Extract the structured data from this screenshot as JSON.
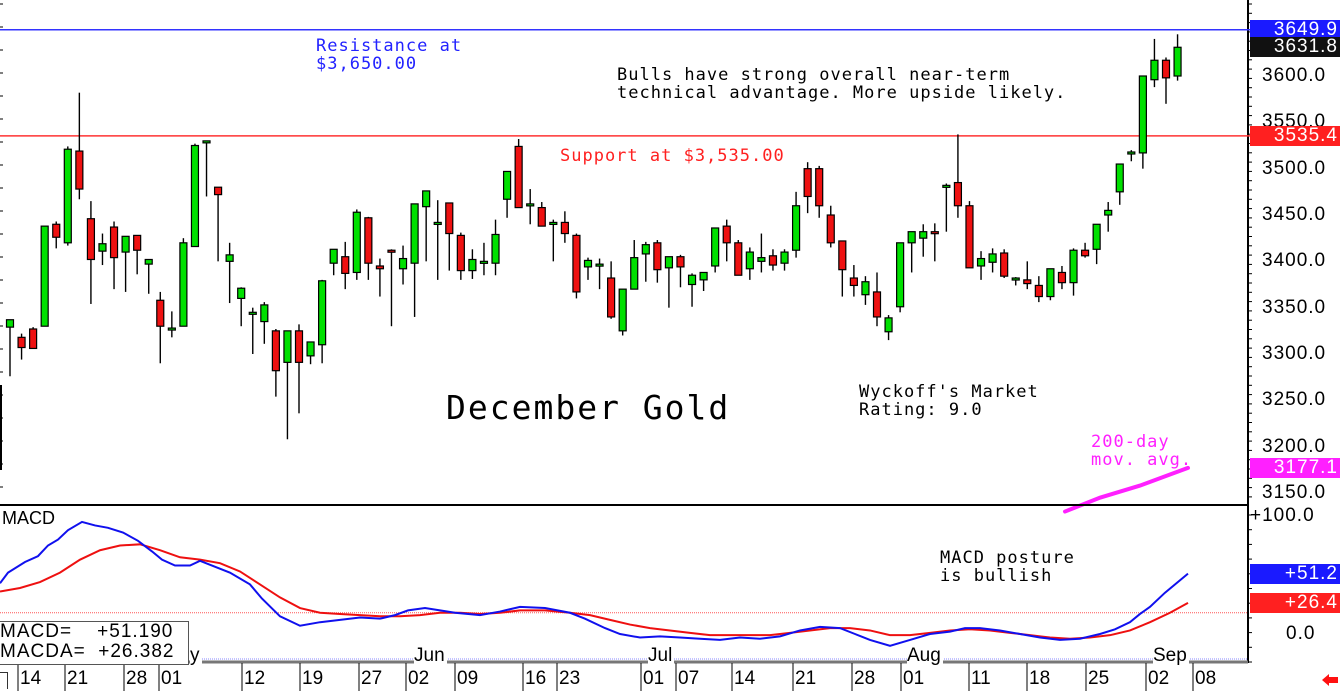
{
  "chart_data": {
    "type": "candlestick",
    "title": "December Gold",
    "price_axis": {
      "ticks": [
        3600.0,
        3550.0,
        3500.0,
        3450.0,
        3400.0,
        3350.0,
        3300.0,
        3250.0,
        3200.0,
        3150.0
      ],
      "tick_labels": [
        "3600.0",
        "3550.0",
        "3500.0",
        "3450.0",
        "3400.0",
        "3350.0",
        "3300.0",
        "3250.0",
        "3200.0",
        "3150.0"
      ],
      "ylim": [
        3130,
        3680
      ]
    },
    "axis_tags": [
      {
        "label": "3649.9",
        "value": 3649.9,
        "bg": "#1a1aff",
        "fg": "#ffffff"
      },
      {
        "label": "3631.8",
        "value": 3631.8,
        "bg": "#111111",
        "fg": "#ffffff"
      },
      {
        "label": "3535.4",
        "value": 3535.4,
        "bg": "#ff2020",
        "fg": "#ffffff"
      },
      {
        "label": "3177.1",
        "value": 3177.1,
        "bg": "#ff20ff",
        "fg": "#ffffff"
      }
    ],
    "horizontal_lines": [
      {
        "name": "resistance",
        "value": 3649.9,
        "color": "#3333ff"
      },
      {
        "name": "support",
        "value": 3535.4,
        "color": "#ff3333"
      }
    ],
    "annotations": {
      "resistance": "Resistance at\n$3,650.00",
      "support": "Support at $3,535.00",
      "outlook": "Bulls have strong overall near-term\ntechnical advantage. More upside likely.",
      "rating": "Wyckoff's Market\nRating: 9.0",
      "ma_label": "200-day\nmov. avg.",
      "macd_note": "MACD posture\nis bullish"
    },
    "candles_x_start": 10,
    "candles_x_step": 11.56,
    "candles": [
      [
        3329,
        3337,
        3276,
        3337
      ],
      [
        3318,
        3322,
        3294,
        3307
      ],
      [
        3327,
        3329,
        3307,
        3306
      ],
      [
        3330,
        3438,
        3330,
        3438
      ],
      [
        3440,
        3443,
        3414,
        3426
      ],
      [
        3420,
        3524,
        3417,
        3521
      ],
      [
        3519,
        3582,
        3467,
        3478
      ],
      [
        3446,
        3465,
        3354,
        3402
      ],
      [
        3411,
        3430,
        3396,
        3419
      ],
      [
        3437,
        3443,
        3370,
        3404
      ],
      [
        3410,
        3420,
        3367,
        3427
      ],
      [
        3428,
        3428,
        3386,
        3412
      ],
      [
        3397,
        3397,
        3365,
        3402
      ],
      [
        3358,
        3367,
        3290,
        3330
      ],
      [
        3328,
        3346,
        3318,
        3328
      ],
      [
        3330,
        3425,
        3330,
        3420
      ],
      [
        3416,
        3527,
        3416,
        3525
      ],
      [
        3528,
        3528,
        3470,
        3530
      ],
      [
        3480,
        3480,
        3400,
        3472
      ],
      [
        3400,
        3420,
        3355,
        3407
      ],
      [
        3360,
        3372,
        3330,
        3371
      ],
      [
        3345,
        3350,
        3300,
        3345
      ],
      [
        3335,
        3356,
        3311,
        3353
      ],
      [
        3325,
        3327,
        3254,
        3282
      ],
      [
        3291,
        3325,
        3208,
        3325
      ],
      [
        3325,
        3332,
        3236,
        3291
      ],
      [
        3298,
        3311,
        3289,
        3313
      ],
      [
        3310,
        3380,
        3290,
        3379
      ],
      [
        3398,
        3408,
        3385,
        3413
      ],
      [
        3405,
        3421,
        3370,
        3387
      ],
      [
        3388,
        3456,
        3380,
        3453
      ],
      [
        3447,
        3448,
        3380,
        3398
      ],
      [
        3395,
        3403,
        3362,
        3392
      ],
      [
        3412,
        3413,
        3330,
        3411
      ],
      [
        3392,
        3417,
        3375,
        3403
      ],
      [
        3398,
        3440,
        3340,
        3462
      ],
      [
        3459,
        3474,
        3400,
        3476
      ],
      [
        3440,
        3466,
        3380,
        3442
      ],
      [
        3463,
        3463,
        3390,
        3430
      ],
      [
        3428,
        3431,
        3380,
        3390
      ],
      [
        3390,
        3413,
        3381,
        3402
      ],
      [
        3400,
        3420,
        3385,
        3400
      ],
      [
        3398,
        3445,
        3385,
        3429
      ],
      [
        3467,
        3476,
        3447,
        3497
      ],
      [
        3524,
        3532,
        3460,
        3458
      ],
      [
        3462,
        3478,
        3440,
        3462
      ],
      [
        3458,
        3464,
        3440,
        3438
      ],
      [
        3440,
        3445,
        3400,
        3442
      ],
      [
        3442,
        3454,
        3420,
        3430
      ],
      [
        3428,
        3430,
        3360,
        3367
      ],
      [
        3394,
        3404,
        3380,
        3401
      ],
      [
        3397,
        3403,
        3370,
        3397
      ],
      [
        3382,
        3400,
        3338,
        3340
      ],
      [
        3325,
        3330,
        3320,
        3370
      ],
      [
        3370,
        3423,
        3370,
        3404
      ],
      [
        3408,
        3421,
        3378,
        3418
      ],
      [
        3420,
        3423,
        3377,
        3391
      ],
      [
        3393,
        3397,
        3350,
        3405
      ],
      [
        3405,
        3407,
        3372,
        3394
      ],
      [
        3375,
        3387,
        3351,
        3385
      ],
      [
        3380,
        3388,
        3368,
        3388
      ],
      [
        3395,
        3415,
        3388,
        3436
      ],
      [
        3438,
        3445,
        3400,
        3420
      ],
      [
        3420,
        3423,
        3390,
        3385
      ],
      [
        3392,
        3415,
        3380,
        3410
      ],
      [
        3400,
        3430,
        3388,
        3404
      ],
      [
        3406,
        3413,
        3390,
        3396
      ],
      [
        3398,
        3413,
        3390,
        3410
      ],
      [
        3412,
        3475,
        3404,
        3460
      ],
      [
        3500,
        3507,
        3452,
        3470
      ],
      [
        3500,
        3503,
        3447,
        3460
      ],
      [
        3450,
        3460,
        3415,
        3420
      ],
      [
        3422,
        3420,
        3362,
        3391
      ],
      [
        3382,
        3396,
        3362,
        3374
      ],
      [
        3364,
        3384,
        3353,
        3378
      ],
      [
        3367,
        3388,
        3330,
        3340
      ],
      [
        3324,
        3342,
        3315,
        3339
      ],
      [
        3351,
        3392,
        3345,
        3420
      ],
      [
        3420,
        3427,
        3388,
        3432
      ],
      [
        3425,
        3440,
        3405,
        3432
      ],
      [
        3432,
        3441,
        3400,
        3430
      ],
      [
        3480,
        3484,
        3432,
        3482
      ],
      [
        3485,
        3537,
        3447,
        3460
      ],
      [
        3460,
        3465,
        3397,
        3393
      ],
      [
        3395,
        3411,
        3380,
        3403
      ],
      [
        3399,
        3414,
        3388,
        3408
      ],
      [
        3409,
        3413,
        3382,
        3384
      ],
      [
        3382,
        3383,
        3374,
        3382
      ],
      [
        3380,
        3400,
        3370,
        3376
      ],
      [
        3374,
        3384,
        3356,
        3362
      ],
      [
        3362,
        3391,
        3358,
        3392
      ],
      [
        3388,
        3395,
        3370,
        3377
      ],
      [
        3377,
        3414,
        3363,
        3412
      ],
      [
        3412,
        3420,
        3404,
        3406
      ],
      [
        3413,
        3440,
        3397,
        3440
      ],
      [
        3450,
        3464,
        3432,
        3455
      ],
      [
        3475,
        3496,
        3461,
        3505
      ],
      [
        3516,
        3520,
        3508,
        3518
      ],
      [
        3517,
        3600,
        3500,
        3600
      ],
      [
        3596,
        3640,
        3588,
        3617
      ],
      [
        3617,
        3620,
        3570,
        3598
      ],
      [
        3600,
        3645,
        3595,
        3631
      ]
    ],
    "candle_format": "[open, high, low, close] approx, read from pixels",
    "moving_average_200": {
      "color": "#ff20ff",
      "points_xy_price": [
        [
          1065,
          3130
        ],
        [
          1100,
          3145
        ],
        [
          1140,
          3158
        ],
        [
          1170,
          3170
        ],
        [
          1188,
          3177.1
        ]
      ]
    },
    "macd": {
      "label": "MACD",
      "ylim": [
        -20,
        110
      ],
      "ticks": [
        "+100.0",
        "0.0"
      ],
      "tick_values": [
        100,
        0
      ],
      "tags": [
        {
          "label": "+51.2",
          "value": 51.2,
          "bg": "#1a1aff",
          "fg": "#ffffff"
        },
        {
          "label": "+26.4",
          "value": 26.4,
          "bg": "#ff2020",
          "fg": "#ffffff"
        }
      ],
      "reference_line": 18,
      "macd_line_color": "#1010ee",
      "signal_line_color": "#ee1010",
      "macd_line": [
        [
          0,
          43
        ],
        [
          8,
          52
        ],
        [
          25,
          61
        ],
        [
          38,
          66
        ],
        [
          48,
          75
        ],
        [
          58,
          80
        ],
        [
          68,
          88
        ],
        [
          82,
          95
        ],
        [
          95,
          92
        ],
        [
          108,
          90
        ],
        [
          123,
          86
        ],
        [
          138,
          79
        ],
        [
          152,
          70
        ],
        [
          162,
          63
        ],
        [
          175,
          58
        ],
        [
          190,
          58
        ],
        [
          200,
          62
        ],
        [
          212,
          58
        ],
        [
          230,
          52
        ],
        [
          250,
          42
        ],
        [
          262,
          30
        ],
        [
          280,
          15
        ],
        [
          300,
          7
        ],
        [
          320,
          10
        ],
        [
          340,
          12
        ],
        [
          360,
          14
        ],
        [
          380,
          13
        ],
        [
          395,
          16
        ],
        [
          408,
          20
        ],
        [
          425,
          22
        ],
        [
          440,
          20
        ],
        [
          455,
          18
        ],
        [
          480,
          16
        ],
        [
          500,
          19
        ],
        [
          520,
          23
        ],
        [
          545,
          22
        ],
        [
          570,
          18
        ],
        [
          585,
          13
        ],
        [
          605,
          5
        ],
        [
          620,
          0
        ],
        [
          640,
          -3
        ],
        [
          660,
          -2
        ],
        [
          680,
          -3
        ],
        [
          700,
          -4
        ],
        [
          720,
          -5
        ],
        [
          740,
          -3
        ],
        [
          760,
          -4
        ],
        [
          780,
          -2
        ],
        [
          800,
          3
        ],
        [
          820,
          6
        ],
        [
          840,
          5
        ],
        [
          855,
          0
        ],
        [
          870,
          -5
        ],
        [
          890,
          -10
        ],
        [
          910,
          -5
        ],
        [
          930,
          0
        ],
        [
          950,
          2
        ],
        [
          965,
          5
        ],
        [
          980,
          5
        ],
        [
          1000,
          3
        ],
        [
          1020,
          0
        ],
        [
          1040,
          -3
        ],
        [
          1060,
          -5
        ],
        [
          1080,
          -4
        ],
        [
          1100,
          0
        ],
        [
          1115,
          4
        ],
        [
          1130,
          10
        ],
        [
          1140,
          17
        ],
        [
          1150,
          23
        ],
        [
          1165,
          35
        ],
        [
          1188,
          51.2
        ]
      ],
      "signal_line": [
        [
          0,
          36
        ],
        [
          20,
          39
        ],
        [
          40,
          44
        ],
        [
          60,
          52
        ],
        [
          80,
          63
        ],
        [
          100,
          71
        ],
        [
          120,
          75
        ],
        [
          140,
          76
        ],
        [
          160,
          71
        ],
        [
          180,
          65
        ],
        [
          200,
          63
        ],
        [
          220,
          60
        ],
        [
          240,
          53
        ],
        [
          260,
          42
        ],
        [
          280,
          31
        ],
        [
          300,
          22
        ],
        [
          320,
          18
        ],
        [
          340,
          17
        ],
        [
          360,
          16
        ],
        [
          380,
          15
        ],
        [
          400,
          15
        ],
        [
          420,
          16
        ],
        [
          440,
          18
        ],
        [
          460,
          18
        ],
        [
          480,
          17
        ],
        [
          500,
          18
        ],
        [
          520,
          20
        ],
        [
          545,
          20
        ],
        [
          570,
          18
        ],
        [
          590,
          16
        ],
        [
          610,
          12
        ],
        [
          630,
          8
        ],
        [
          650,
          5
        ],
        [
          670,
          3
        ],
        [
          690,
          1
        ],
        [
          710,
          -1
        ],
        [
          730,
          -1
        ],
        [
          750,
          -1
        ],
        [
          770,
          -1
        ],
        [
          790,
          1
        ],
        [
          810,
          3
        ],
        [
          830,
          5
        ],
        [
          850,
          5
        ],
        [
          870,
          3
        ],
        [
          890,
          -1
        ],
        [
          910,
          -1
        ],
        [
          930,
          1
        ],
        [
          950,
          3
        ],
        [
          970,
          4
        ],
        [
          990,
          3
        ],
        [
          1010,
          1
        ],
        [
          1030,
          -1
        ],
        [
          1050,
          -3
        ],
        [
          1070,
          -4
        ],
        [
          1090,
          -3
        ],
        [
          1110,
          -1
        ],
        [
          1130,
          3
        ],
        [
          1150,
          10
        ],
        [
          1170,
          18
        ],
        [
          1188,
          26.4
        ]
      ],
      "readout": {
        "macd_label": "MACD=",
        "macd_value": "+51.190",
        "macda_label": "MACDA=",
        "macda_value": "+26.382"
      }
    },
    "x_axis": {
      "months": [
        {
          "label": "y",
          "x": 190
        },
        {
          "label": "Jun",
          "x": 414
        },
        {
          "label": "Jul",
          "x": 648
        },
        {
          "label": "Aug",
          "x": 907
        },
        {
          "label": "Sep",
          "x": 1153
        }
      ],
      "dates": [
        {
          "label": "14",
          "x": 22
        },
        {
          "label": "21",
          "x": 69
        },
        {
          "label": "28",
          "x": 128
        },
        {
          "label": "01",
          "x": 163
        },
        {
          "label": "12",
          "x": 246
        },
        {
          "label": "19",
          "x": 304
        },
        {
          "label": "27",
          "x": 363
        },
        {
          "label": "02",
          "x": 410
        },
        {
          "label": "09",
          "x": 459
        },
        {
          "label": "16",
          "x": 527
        },
        {
          "label": "23",
          "x": 561
        },
        {
          "label": "01",
          "x": 645
        },
        {
          "label": "07",
          "x": 680
        },
        {
          "label": "14",
          "x": 736
        },
        {
          "label": "21",
          "x": 797
        },
        {
          "label": "28",
          "x": 856
        },
        {
          "label": "01",
          "x": 905
        },
        {
          "label": "11",
          "x": 973
        },
        {
          "label": "18",
          "x": 1031
        },
        {
          "label": "25",
          "x": 1090
        },
        {
          "label": "02",
          "x": 1150
        },
        {
          "label": "08",
          "x": 1197
        }
      ]
    }
  },
  "labels": {
    "title": "December Gold",
    "resistance": "Resistance at\n$3,650.00",
    "support": "Support at $3,535.00",
    "outlook": "Bulls have strong overall near-term\ntechnical advantage. More upside likely.",
    "rating": "Wyckoff's Market\nRating: 9.0",
    "ma": "200-day\nmov. avg.",
    "macd_title": "MACD",
    "macd_note": "MACD posture\nis bullish",
    "readout_macd": "MACD=    +51.190",
    "readout_macda": "MACDA=  +26.382"
  }
}
